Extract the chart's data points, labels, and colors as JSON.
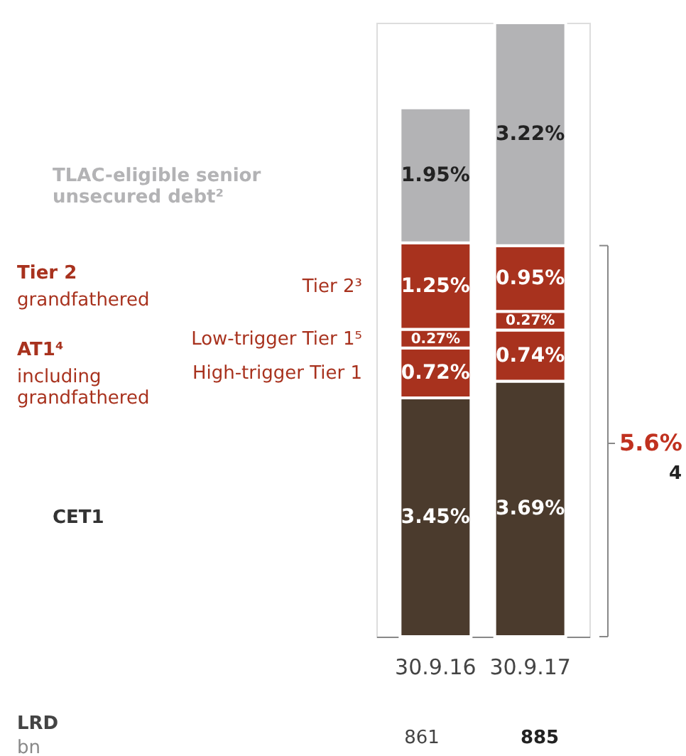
{
  "chart_data": {
    "type": "bar",
    "stacked": true,
    "categories": [
      "30.9.16",
      "30.9.17"
    ],
    "series": [
      {
        "name": "CET1",
        "color": "#4b3b2d",
        "values": [
          3.45,
          3.69
        ],
        "value_labels": [
          "3.45%",
          "3.69%"
        ]
      },
      {
        "name": "High-trigger Tier 1",
        "color": "#a8321e",
        "values": [
          0.72,
          0.74
        ],
        "value_labels": [
          "0.72%",
          "0.74%"
        ]
      },
      {
        "name": "Low-trigger Tier 1⁵",
        "color": "#a8321e",
        "values": [
          0.27,
          0.27
        ],
        "value_labels": [
          "0.27%",
          "0.27%"
        ]
      },
      {
        "name": "Tier 2³",
        "color": "#a8321e",
        "values": [
          1.25,
          0.95
        ],
        "value_labels": [
          "1.25%",
          "0.95%"
        ]
      },
      {
        "name": "TLAC-eligible senior unsecured debt²",
        "color": "#b3b3b5",
        "values": [
          1.95,
          3.22
        ],
        "value_labels": [
          "1.95%",
          "3.22%"
        ]
      }
    ],
    "annotations": [
      "Tier 2",
      "grandfathered",
      "AT1⁴",
      "including grandfathered",
      "5.6%",
      "4",
      "LRD",
      "bn",
      "861",
      "885"
    ]
  }
}
